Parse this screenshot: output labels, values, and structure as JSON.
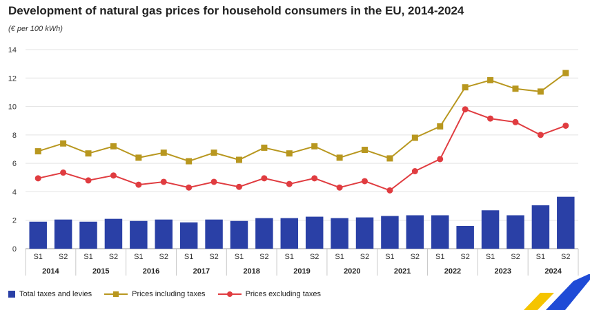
{
  "chart_data": {
    "type": "bar",
    "title": "Development of natural gas prices for household consumers in the EU, 2014-2024",
    "subtitle": "(€ per 100 kWh)",
    "xlabel": "",
    "ylabel": "",
    "ylim": [
      0,
      14
    ],
    "yticks": [
      0,
      2,
      4,
      6,
      8,
      10,
      12,
      14
    ],
    "grid": "horizontal",
    "legend_position": "bottom-left",
    "categories": [
      "S1",
      "S2",
      "S1",
      "S2",
      "S1",
      "S2",
      "S1",
      "S2",
      "S1",
      "S2",
      "S1",
      "S2",
      "S1",
      "S2",
      "S1",
      "S2",
      "S1",
      "S2",
      "S1",
      "S2",
      "S1",
      "S2"
    ],
    "years": [
      "2014",
      "2015",
      "2016",
      "2017",
      "2018",
      "2019",
      "2020",
      "2021",
      "2022",
      "2023",
      "2024"
    ],
    "series": [
      {
        "name": "Total taxes and levies",
        "type": "bar",
        "color": "#2a40a6",
        "values": [
          1.9,
          2.05,
          1.9,
          2.1,
          1.95,
          2.05,
          1.85,
          2.05,
          1.95,
          2.15,
          2.15,
          2.25,
          2.15,
          2.2,
          2.3,
          2.35,
          2.35,
          1.6,
          2.7,
          2.35,
          3.05,
          3.65
        ]
      },
      {
        "name": "Prices including taxes",
        "type": "line",
        "marker": "square",
        "color": "#b8971f",
        "values": [
          6.85,
          7.4,
          6.7,
          7.2,
          6.4,
          6.75,
          6.15,
          6.75,
          6.25,
          7.1,
          6.7,
          7.2,
          6.4,
          6.95,
          6.35,
          7.8,
          8.6,
          11.35,
          11.85,
          11.25,
          11.05,
          12.35
        ]
      },
      {
        "name": "Prices excluding taxes",
        "type": "line",
        "marker": "circle",
        "color": "#e03c40",
        "values": [
          4.95,
          5.35,
          4.8,
          5.15,
          4.5,
          4.7,
          4.3,
          4.7,
          4.35,
          4.95,
          4.55,
          4.95,
          4.3,
          4.75,
          4.1,
          5.45,
          6.3,
          9.8,
          9.15,
          8.9,
          8.0,
          8.65
        ]
      }
    ]
  },
  "brand": {
    "logo_icon": "eurostat-chevron-logo-icon",
    "colors": [
      "#f5c400",
      "#1f4bd6"
    ]
  }
}
